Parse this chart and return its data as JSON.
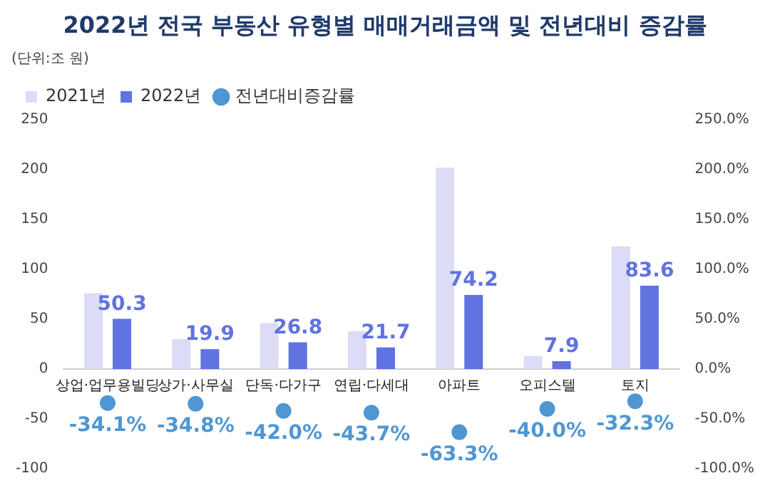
{
  "chart_data": {
    "type": "bar",
    "title": "2022년 전국 부동산 유형별 매매거래금액 및 전년대비 증감률",
    "ylabel": "(단위:조 원)",
    "categories": [
      "상업·업무용빌딩",
      "상가·사무실",
      "단독·다가구",
      "연립·다세대",
      "아파트",
      "오피스텔",
      "토지"
    ],
    "series": [
      {
        "name": "2021년",
        "color": "#dcdcf6",
        "values": [
          76,
          30,
          46,
          38,
          202,
          13,
          123
        ]
      },
      {
        "name": "2022년",
        "color": "#6073e0",
        "values": [
          50.3,
          19.9,
          26.8,
          21.7,
          74.2,
          7.9,
          83.6
        ],
        "value_labels": [
          "50.3",
          "19.9",
          "26.8",
          "21.7",
          "74.2",
          "7.9",
          "83.6"
        ]
      },
      {
        "name": "전년대비증감률",
        "type": "scatter",
        "axis": "y2",
        "color": "#4f97d3",
        "values": [
          -34.1,
          -34.8,
          -42.0,
          -43.7,
          -63.3,
          -40.0,
          -32.3
        ],
        "value_labels": [
          "-34.1%",
          "-34.8%",
          "-42.0%",
          "-43.7%",
          "-63.3%",
          "-40.0%",
          "-32.3%"
        ]
      }
    ],
    "ylim": [
      -100,
      250
    ],
    "yticks": [
      -100,
      -50,
      0,
      50,
      100,
      150,
      200,
      250
    ],
    "y2lim": [
      -100,
      250
    ],
    "y2ticks": [
      {
        "value": -100,
        "label": "-100.0%"
      },
      {
        "value": -50,
        "label": "-50.0%"
      },
      {
        "value": 0,
        "label": "0.0%"
      },
      {
        "value": 50,
        "label": "50.0%"
      },
      {
        "value": 100,
        "label": "100.0%"
      },
      {
        "value": 150,
        "label": "150.0%"
      },
      {
        "value": 200,
        "label": "200.0%"
      },
      {
        "value": 250,
        "label": "250.0%"
      }
    ],
    "legend": "top left",
    "marker": "circle",
    "grid": false
  }
}
